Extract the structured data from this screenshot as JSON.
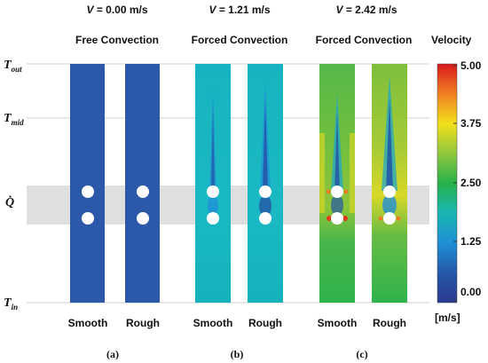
{
  "velocity_headers": [
    {
      "var": "V",
      "value": "= 0.00 m/s"
    },
    {
      "var": "V",
      "value": "= 1.21 m/s"
    },
    {
      "var": "V",
      "value": "= 2.42 m/s"
    }
  ],
  "subtitles": [
    "Free Convection",
    "Forced Convection",
    "Forced Convection"
  ],
  "panel_labels": [
    "(a)",
    "(b)",
    "(c)"
  ],
  "column_labels": [
    "Smooth",
    "Rough"
  ],
  "y_labels": {
    "t_out": "T",
    "t_out_sub": "out",
    "t_mid": "T",
    "t_mid_sub": "mid",
    "q": "Q̇",
    "t_in": "T",
    "t_in_sub": "in"
  },
  "colorbar": {
    "title": "Velocity",
    "unit": "[m/s]",
    "ticks": [
      "5.00",
      "3.75",
      "2.50",
      "1.25",
      "0.00"
    ],
    "colors": [
      "#d7191c",
      "#f07c22",
      "#f2e01a",
      "#8cc63f",
      "#27b24a",
      "#19b7b0",
      "#1f8fd6",
      "#2456a6",
      "#2a3b8f"
    ]
  }
}
